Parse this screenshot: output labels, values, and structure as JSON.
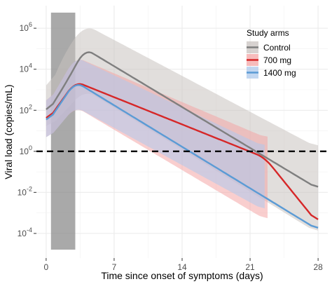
{
  "chart_data": {
    "type": "line",
    "xlabel": "Time since onset of symptoms (days)",
    "ylabel": "Viral load (copies/mL)",
    "x_ticks": [
      0,
      7,
      14,
      21,
      28
    ],
    "y_ticks": [
      {
        "value": -4,
        "base": "10",
        "exp": "-4"
      },
      {
        "value": -2,
        "base": "10",
        "exp": "-2"
      },
      {
        "value": 0,
        "base": "10",
        "exp": "0"
      },
      {
        "value": 2,
        "base": "10",
        "exp": "2"
      },
      {
        "value": 4,
        "base": "10",
        "exp": "4"
      },
      {
        "value": 6,
        "base": "10",
        "exp": "6"
      }
    ],
    "y_scale": "log10",
    "xlim": [
      -1,
      29
    ],
    "ylim_log10": [
      -5.2,
      7.1
    ],
    "grid": true,
    "legend_title": "Study arms",
    "legend_position": "top-right",
    "threshold_log10": 0,
    "shaded_interval_x": [
      0.5,
      3
    ],
    "series": [
      {
        "name": "Control",
        "color": "#7f7f7f",
        "band_color": "#c9c3c0",
        "x": [
          0,
          2,
          4,
          28
        ],
        "y": [
          60,
          2000,
          100000,
          0.015
        ],
        "band_lower": [
          10,
          100,
          1000,
          0.0001
        ],
        "band_upper": [
          500,
          80000,
          1500000,
          1.5
        ]
      },
      {
        "name": "700 mg",
        "color": "#d62728",
        "band_color": "#f4a6a6",
        "x": [
          0,
          3,
          22.5,
          28
        ],
        "y": [
          25,
          2500,
          0.5,
          0.0003
        ],
        "band_lower": [
          3,
          150,
          0.0005,
          0.0004
        ],
        "band_upper": [
          150,
          40000,
          5,
          0.5
        ],
        "band_end_x": 22.8
      },
      {
        "name": "1400 mg",
        "color": "#5b9bd5",
        "band_color": "#aec9ec",
        "x": [
          0,
          3,
          28
        ],
        "y": [
          20,
          2500,
          0.00015
        ],
        "band_lower": [
          3,
          150,
          5e-05
        ],
        "band_upper": [
          150,
          40000,
          0.1
        ],
        "band_end_x": 22.5
      }
    ]
  }
}
